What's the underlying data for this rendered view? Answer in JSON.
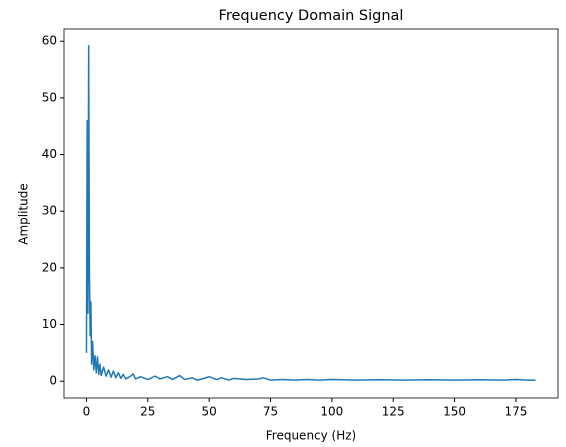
{
  "chart_data": {
    "type": "line",
    "title": "Frequency Domain Signal",
    "x_label": "Frequency (Hz)",
    "y_label": "Amplitude",
    "x": [
      0,
      0.3,
      0.6,
      0.9,
      1.2,
      1.5,
      1.8,
      2.1,
      2.5,
      3,
      3.5,
      4,
      4.5,
      5,
      5.5,
      6,
      7,
      8,
      9,
      10,
      11,
      12,
      13,
      14,
      15,
      16,
      18,
      19,
      20,
      22,
      25,
      28,
      30,
      33,
      35,
      38,
      40,
      43,
      45,
      48,
      50,
      53,
      55,
      58,
      60,
      65,
      70,
      72,
      75,
      80,
      85,
      90,
      95,
      100,
      110,
      120,
      130,
      140,
      150,
      160,
      170,
      175,
      180,
      183
    ],
    "values": [
      5,
      46,
      12,
      59.2,
      20,
      8,
      14,
      3,
      7,
      2,
      4.5,
      1.5,
      4.3,
      1.2,
      3,
      1,
      2.5,
      0.9,
      2,
      0.7,
      1.8,
      0.6,
      1.5,
      0.5,
      1.2,
      0.4,
      0.9,
      1.3,
      0.4,
      0.8,
      0.3,
      0.9,
      0.4,
      0.8,
      0.3,
      1,
      0.3,
      0.6,
      0.2,
      0.5,
      0.8,
      0.3,
      0.6,
      0.2,
      0.5,
      0.3,
      0.4,
      0.6,
      0.2,
      0.3,
      0.2,
      0.3,
      0.2,
      0.3,
      0.2,
      0.25,
      0.2,
      0.25,
      0.2,
      0.25,
      0.2,
      0.3,
      0.2,
      0.2
    ],
    "color": "#1f77b4",
    "xlim": [
      -9.15,
      192.15
    ],
    "ylim": [
      -2.96,
      62.16
    ],
    "xticks": [
      0,
      25,
      50,
      75,
      100,
      125,
      150,
      175
    ],
    "yticks": [
      0,
      10,
      20,
      30,
      40,
      50,
      60
    ]
  }
}
